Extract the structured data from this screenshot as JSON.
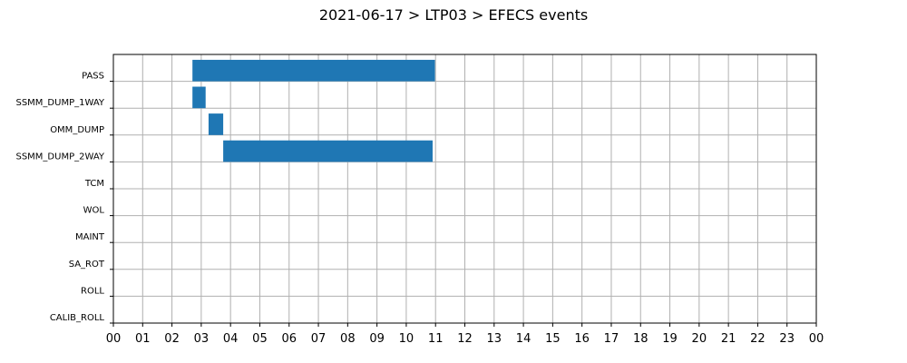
{
  "chart_data": {
    "type": "timeline",
    "title": "2021-06-17 > LTP03 > EFECS events",
    "categories": [
      "PASS",
      "SSMM_DUMP_1WAY",
      "OMM_DUMP",
      "SSMM_DUMP_2WAY",
      "TCM",
      "WOL",
      "MAINT",
      "SA_ROT",
      "ROLL",
      "CALIB_ROLL"
    ],
    "x_tick_labels": [
      "00",
      "01",
      "02",
      "03",
      "04",
      "05",
      "06",
      "07",
      "08",
      "09",
      "10",
      "11",
      "12",
      "13",
      "14",
      "15",
      "16",
      "17",
      "18",
      "19",
      "20",
      "21",
      "22",
      "23",
      "00"
    ],
    "xlim_hours": [
      0,
      24
    ],
    "grid": true,
    "bar_color": "#1f77b4",
    "events": [
      {
        "category": "PASS",
        "start_hour": 2.7,
        "end_hour": 10.98
      },
      {
        "category": "SSMM_DUMP_1WAY",
        "start_hour": 2.7,
        "end_hour": 3.15
      },
      {
        "category": "OMM_DUMP",
        "start_hour": 3.25,
        "end_hour": 3.75
      },
      {
        "category": "SSMM_DUMP_2WAY",
        "start_hour": 3.75,
        "end_hour": 10.9
      }
    ]
  }
}
